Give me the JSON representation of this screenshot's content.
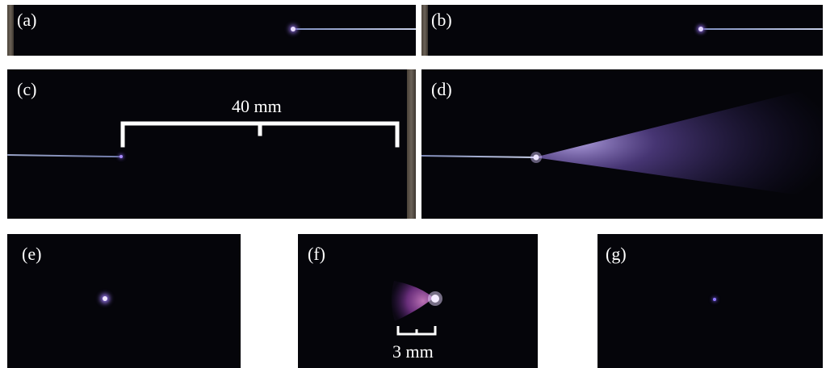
{
  "panels": {
    "a": {
      "label": "(a)"
    },
    "b": {
      "label": "(b)"
    },
    "c": {
      "label": "(c)",
      "scale": "40 mm"
    },
    "d": {
      "label": "(d)"
    },
    "e": {
      "label": "(e)"
    },
    "f": {
      "label": "(f)",
      "scale": "3 mm"
    },
    "g": {
      "label": "(g)"
    }
  },
  "colors": {
    "background": "#05050a",
    "glow": "#7b5cc8",
    "wire": "#aab4d4"
  }
}
